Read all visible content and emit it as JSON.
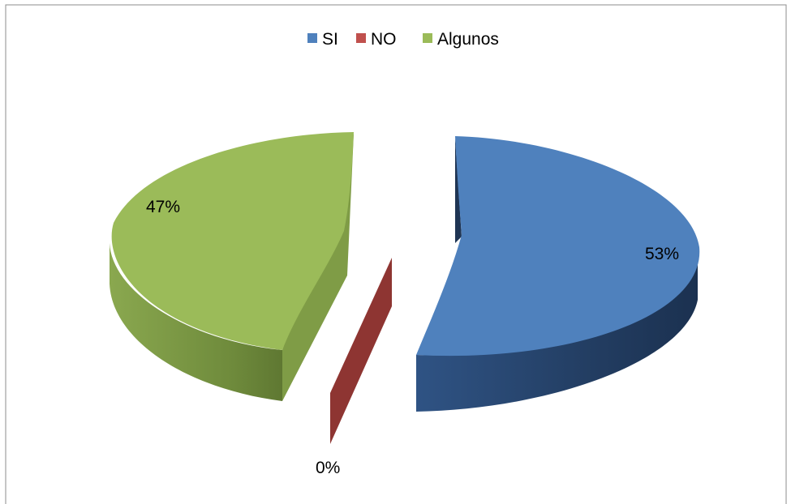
{
  "chart_data": {
    "type": "pie",
    "style": "3d-exploded",
    "categories": [
      "SI",
      "NO",
      "Algunos"
    ],
    "values": [
      53,
      0,
      47
    ],
    "data_labels": [
      "53%",
      "0%",
      "47%"
    ],
    "legend": {
      "position": "top",
      "entries": [
        "SI",
        "NO",
        "Algunos"
      ]
    },
    "colors": {
      "SI": "#4F81BD",
      "NO": "#C0504D",
      "Algunos": "#9BBB59",
      "SI_side": "#2A4A73",
      "NO_side": "#8E3532",
      "Algunos_side": "#6E8A3A"
    },
    "title": ""
  }
}
